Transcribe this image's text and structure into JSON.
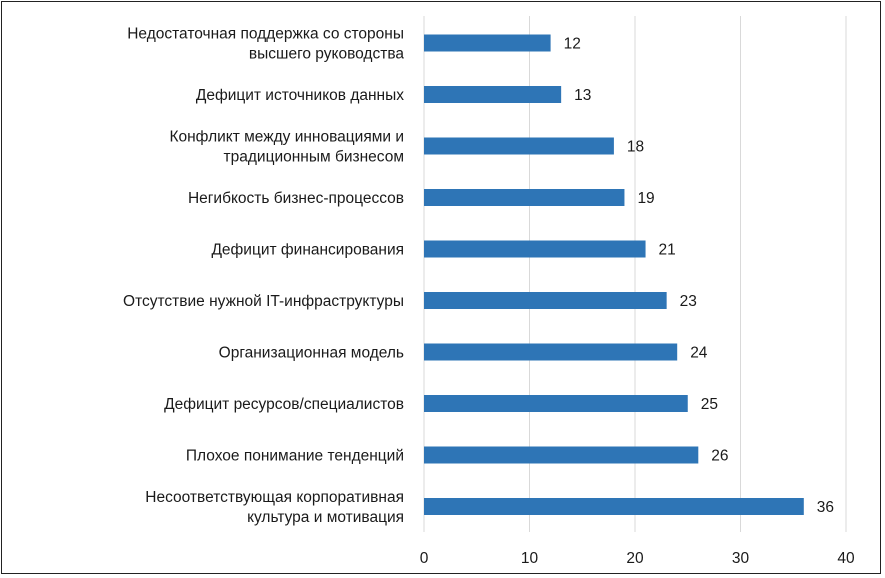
{
  "chart_data": {
    "type": "bar",
    "orientation": "horizontal",
    "categories": [
      [
        "Недостаточная поддержка со стороны",
        "высшего руководства"
      ],
      [
        "Дефицит источников данных"
      ],
      [
        "Конфликт между инновациями и",
        "традиционным бизнесом"
      ],
      [
        "Негибкость бизнес-процессов"
      ],
      [
        "Дефицит финансирования"
      ],
      [
        "Отсутствие нужной IT-инфраструктуры"
      ],
      [
        "Организационная модель"
      ],
      [
        "Дефицит ресурсов/специалистов"
      ],
      [
        "Плохое понимание тенденций"
      ],
      [
        "Несоответствующая корпоративная",
        "культура и мотивация"
      ]
    ],
    "values": [
      12,
      13,
      18,
      19,
      21,
      23,
      24,
      25,
      26,
      36
    ],
    "xlim": [
      0,
      40
    ],
    "xticks": [
      0,
      10,
      20,
      30,
      40
    ],
    "grid": "vertical",
    "bar_color": "#2e75b6",
    "grid_color": "#d9d9d9"
  }
}
